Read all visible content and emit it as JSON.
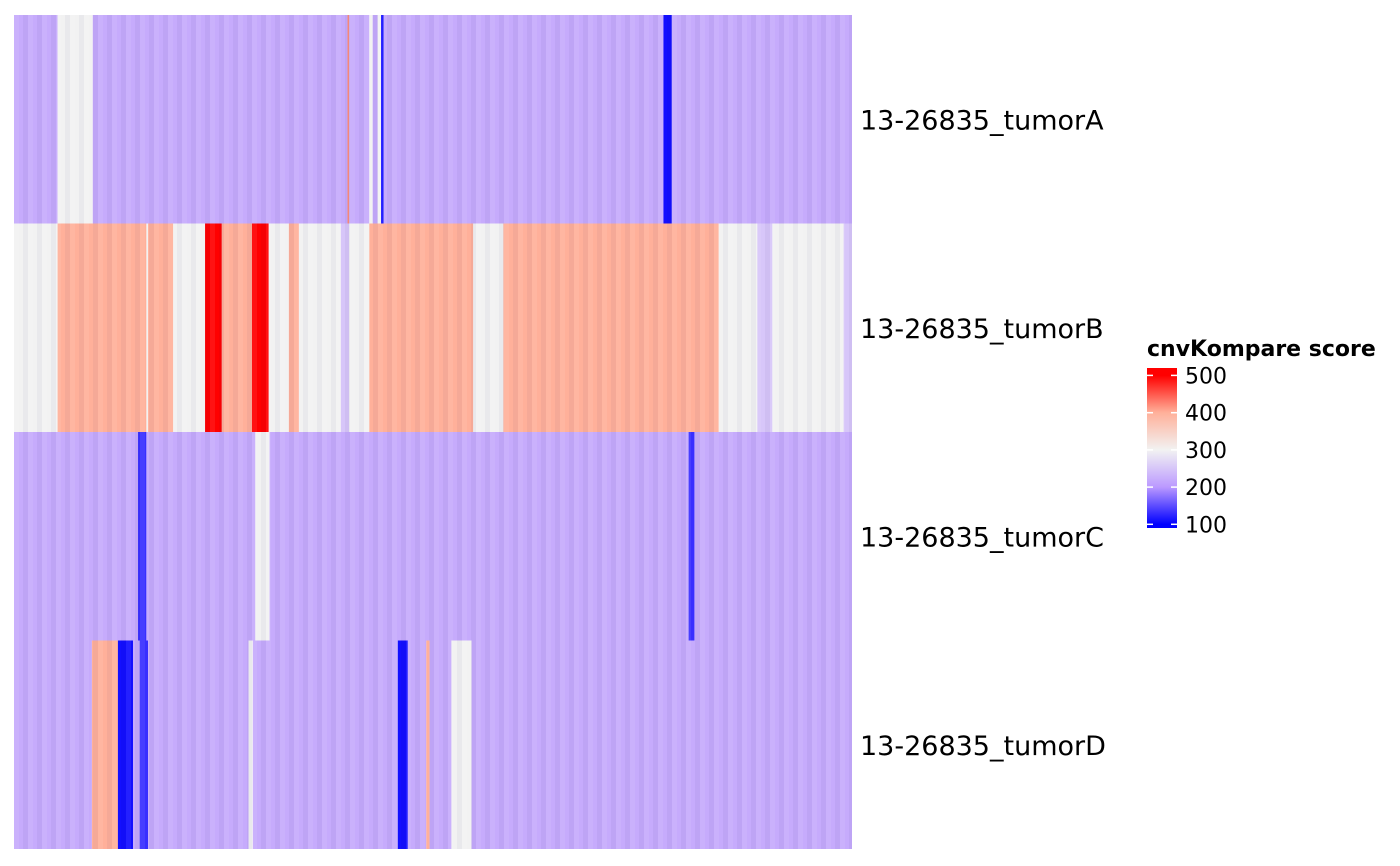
{
  "chart_data": {
    "type": "heatmap",
    "title": "",
    "xlabel": "",
    "ylabel": "",
    "rows": [
      "13-26835_tumorA",
      "13-26835_tumorB",
      "13-26835_tumorC",
      "13-26835_tumorD"
    ],
    "segments_unit": "fraction of genome axis",
    "series": [
      {
        "name": "13-26835_tumorA",
        "segments": [
          {
            "start": 0.0,
            "end": 0.052,
            "value": 220
          },
          {
            "start": 0.052,
            "end": 0.094,
            "value": 300
          },
          {
            "start": 0.094,
            "end": 0.398,
            "value": 220
          },
          {
            "start": 0.398,
            "end": 0.4,
            "value": 420
          },
          {
            "start": 0.4,
            "end": 0.424,
            "value": 220
          },
          {
            "start": 0.424,
            "end": 0.428,
            "value": 300
          },
          {
            "start": 0.428,
            "end": 0.434,
            "value": 220
          },
          {
            "start": 0.434,
            "end": 0.438,
            "value": 300
          },
          {
            "start": 0.438,
            "end": 0.441,
            "value": 110
          },
          {
            "start": 0.441,
            "end": 0.775,
            "value": 220
          },
          {
            "start": 0.775,
            "end": 0.785,
            "value": 110
          },
          {
            "start": 0.785,
            "end": 1.0,
            "value": 220
          }
        ]
      },
      {
        "name": "13-26835_tumorB",
        "segments": [
          {
            "start": 0.0,
            "end": 0.052,
            "value": 300
          },
          {
            "start": 0.052,
            "end": 0.158,
            "value": 400
          },
          {
            "start": 0.158,
            "end": 0.16,
            "value": 300
          },
          {
            "start": 0.16,
            "end": 0.19,
            "value": 400
          },
          {
            "start": 0.19,
            "end": 0.2,
            "value": 300
          },
          {
            "start": 0.2,
            "end": 0.228,
            "value": 300
          },
          {
            "start": 0.228,
            "end": 0.248,
            "value": 500
          },
          {
            "start": 0.248,
            "end": 0.284,
            "value": 400
          },
          {
            "start": 0.284,
            "end": 0.304,
            "value": 500
          },
          {
            "start": 0.304,
            "end": 0.328,
            "value": 300
          },
          {
            "start": 0.328,
            "end": 0.34,
            "value": 400
          },
          {
            "start": 0.34,
            "end": 0.39,
            "value": 300
          },
          {
            "start": 0.39,
            "end": 0.4,
            "value": 250
          },
          {
            "start": 0.4,
            "end": 0.424,
            "value": 300
          },
          {
            "start": 0.424,
            "end": 0.548,
            "value": 400
          },
          {
            "start": 0.548,
            "end": 0.584,
            "value": 300
          },
          {
            "start": 0.584,
            "end": 0.841,
            "value": 400
          },
          {
            "start": 0.841,
            "end": 0.887,
            "value": 300
          },
          {
            "start": 0.887,
            "end": 0.905,
            "value": 250
          },
          {
            "start": 0.905,
            "end": 0.99,
            "value": 300
          },
          {
            "start": 0.99,
            "end": 1.0,
            "value": 250
          }
        ]
      },
      {
        "name": "13-26835_tumorC",
        "segments": [
          {
            "start": 0.0,
            "end": 0.148,
            "value": 220
          },
          {
            "start": 0.148,
            "end": 0.158,
            "value": 130
          },
          {
            "start": 0.158,
            "end": 0.288,
            "value": 220
          },
          {
            "start": 0.288,
            "end": 0.305,
            "value": 300
          },
          {
            "start": 0.305,
            "end": 0.805,
            "value": 220
          },
          {
            "start": 0.805,
            "end": 0.812,
            "value": 130
          },
          {
            "start": 0.812,
            "end": 1.0,
            "value": 220
          }
        ]
      },
      {
        "name": "13-26835_tumorD",
        "segments": [
          {
            "start": 0.0,
            "end": 0.093,
            "value": 220
          },
          {
            "start": 0.093,
            "end": 0.124,
            "value": 400
          },
          {
            "start": 0.124,
            "end": 0.142,
            "value": 110
          },
          {
            "start": 0.142,
            "end": 0.15,
            "value": 220
          },
          {
            "start": 0.15,
            "end": 0.16,
            "value": 130
          },
          {
            "start": 0.16,
            "end": 0.28,
            "value": 220
          },
          {
            "start": 0.28,
            "end": 0.285,
            "value": 300
          },
          {
            "start": 0.285,
            "end": 0.458,
            "value": 220
          },
          {
            "start": 0.458,
            "end": 0.47,
            "value": 110
          },
          {
            "start": 0.47,
            "end": 0.492,
            "value": 220
          },
          {
            "start": 0.492,
            "end": 0.496,
            "value": 400
          },
          {
            "start": 0.496,
            "end": 0.522,
            "value": 220
          },
          {
            "start": 0.522,
            "end": 0.546,
            "value": 300
          },
          {
            "start": 0.546,
            "end": 1.0,
            "value": 220
          }
        ]
      }
    ],
    "legend": {
      "title": "cnvKompare score",
      "ticks": [
        100,
        200,
        300,
        400,
        500
      ],
      "range": [
        90,
        520
      ],
      "colors": [
        "#0000ff",
        "#bb99ff",
        "#f2f2f2",
        "#ffb09a",
        "#ff0000"
      ],
      "placement": "right"
    }
  }
}
